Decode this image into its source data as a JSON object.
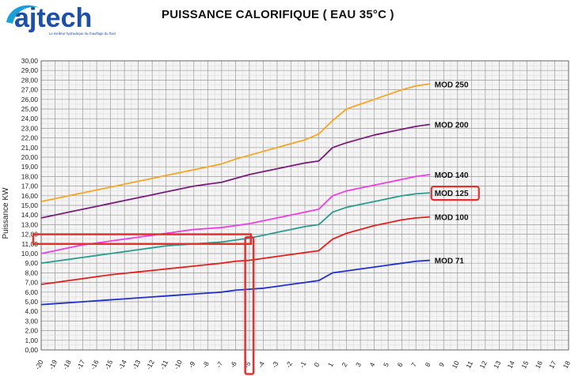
{
  "logo": {
    "brand": "ajtech",
    "tagline": "Le meilleur hydraulique du chauffage du froid"
  },
  "chart_data": {
    "type": "line",
    "title": "PUISSANCE CALORIFIQUE ( EAU 35°C )",
    "xlabel": "",
    "ylabel": "Puissance KW",
    "xlim": [
      -20,
      18
    ],
    "ylim": [
      0,
      30
    ],
    "ytick_step": 1,
    "grid": true,
    "x": [
      -20,
      -19,
      -18,
      -17,
      -16,
      -15,
      -14,
      -13,
      -12,
      -11,
      -10,
      -9,
      -8,
      -7,
      -6,
      -5,
      -4,
      -3,
      -2,
      -1,
      0,
      1,
      2,
      3,
      4,
      5,
      6,
      7,
      8
    ],
    "series": [
      {
        "name": "MOD 250",
        "color": "#f5a623",
        "values": [
          15.4,
          15.7,
          16.0,
          16.3,
          16.6,
          16.9,
          17.2,
          17.5,
          17.8,
          18.1,
          18.4,
          18.7,
          19.0,
          19.3,
          19.8,
          20.2,
          20.6,
          21.0,
          21.4,
          21.8,
          22.4,
          23.8,
          25.0,
          25.5,
          26.0,
          26.5,
          27.0,
          27.4,
          27.6
        ]
      },
      {
        "name": "MOD 200",
        "color": "#7a1c7a",
        "values": [
          13.7,
          14.0,
          14.3,
          14.6,
          14.9,
          15.2,
          15.5,
          15.8,
          16.1,
          16.4,
          16.7,
          17.0,
          17.2,
          17.4,
          17.8,
          18.2,
          18.5,
          18.8,
          19.1,
          19.4,
          19.6,
          21.0,
          21.5,
          21.9,
          22.3,
          22.6,
          22.9,
          23.2,
          23.4
        ]
      },
      {
        "name": "MOD 140",
        "color": "#ee3ee6",
        "values": [
          10.0,
          10.3,
          10.6,
          10.9,
          11.1,
          11.3,
          11.5,
          11.7,
          11.9,
          12.1,
          12.3,
          12.5,
          12.6,
          12.7,
          12.9,
          13.1,
          13.4,
          13.7,
          14.0,
          14.3,
          14.6,
          16.0,
          16.5,
          16.8,
          17.1,
          17.4,
          17.7,
          18.0,
          18.2
        ]
      },
      {
        "name": "MOD 125",
        "color": "#2a9c8f",
        "values": [
          9.0,
          9.2,
          9.4,
          9.6,
          9.8,
          10.0,
          10.2,
          10.4,
          10.6,
          10.8,
          10.9,
          11.0,
          11.1,
          11.2,
          11.4,
          11.6,
          11.9,
          12.2,
          12.5,
          12.8,
          13.0,
          14.3,
          14.8,
          15.1,
          15.4,
          15.7,
          16.0,
          16.2,
          16.3
        ]
      },
      {
        "name": "MOD 100",
        "color": "#e02020",
        "values": [
          6.8,
          7.0,
          7.2,
          7.4,
          7.6,
          7.8,
          7.95,
          8.1,
          8.25,
          8.4,
          8.55,
          8.7,
          8.85,
          9.0,
          9.2,
          9.3,
          9.5,
          9.7,
          9.9,
          10.1,
          10.3,
          11.5,
          12.1,
          12.5,
          12.9,
          13.2,
          13.5,
          13.7,
          13.8
        ]
      },
      {
        "name": "MOD 71",
        "color": "#2030c8",
        "values": [
          4.7,
          4.8,
          4.9,
          5.0,
          5.1,
          5.2,
          5.3,
          5.4,
          5.5,
          5.6,
          5.7,
          5.8,
          5.9,
          6.0,
          6.2,
          6.3,
          6.4,
          6.6,
          6.8,
          7.0,
          7.2,
          8.0,
          8.2,
          8.4,
          8.6,
          8.8,
          9.0,
          9.2,
          9.3
        ]
      }
    ],
    "annotations": [
      {
        "type": "hline-band",
        "y": [
          11.0,
          12.0
        ],
        "x": [
          -20,
          -5
        ],
        "color": "#e53030"
      },
      {
        "type": "vline-band",
        "x": [
          -5.3,
          -4.7
        ],
        "y": [
          -2.5,
          11.7
        ],
        "color": "#e53030"
      },
      {
        "type": "label-box",
        "series": "MOD 125",
        "color": "#e53030"
      }
    ],
    "series_label_color": "#111111",
    "grid_color": "#9a9a9a",
    "grid_minor_color": "#d8d8d8",
    "plot_background": "#f4f4f4"
  }
}
